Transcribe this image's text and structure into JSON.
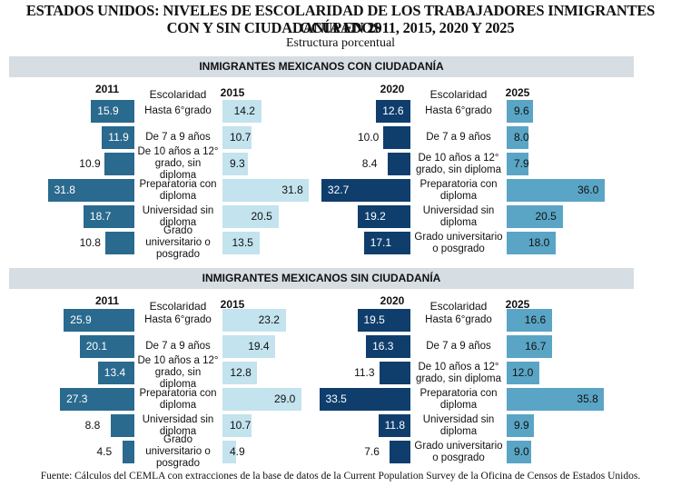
{
  "title_line1": "ESTADOS UNIDOS: NIVELES DE ESCOLARIDAD DE LOS TRABAJADORES INMIGRANTES OCUPADOS",
  "title_line2": "CON Y SIN CIUDADANÍA EN 2011, 2015, 2020 Y 2025",
  "subtitle": "Estructura porcentual",
  "source": "Fuente: Cálculos del CEMLA con extracciones de la base de datos de la Current Population Survey de la Oficina de Censos de Estados Unidos.",
  "colors": {
    "y2011": "#2a6a8e",
    "y2015": "#c3e3ee",
    "y2020": "#0f3e6d",
    "y2025": "#5aa5c5",
    "band": "#d6dde3"
  },
  "chart_data": [
    {
      "type": "bar",
      "title": "INMIGRANTES MEXICANOS CON CIUDADANÍA",
      "category_header": "Escolaridad",
      "categories": [
        "Hasta 6°grado",
        "De 7 a 9 años",
        "De 10 años a 12° grado, sin diploma",
        "Preparatoria con diploma",
        "Universidad sin diploma",
        "Grado universitario o posgrado"
      ],
      "series": [
        {
          "name": "2011",
          "values": [
            15.9,
            11.9,
            10.9,
            31.8,
            18.7,
            10.8
          ]
        },
        {
          "name": "2015",
          "values": [
            14.2,
            10.7,
            9.3,
            31.8,
            20.5,
            13.5
          ]
        },
        {
          "name": "2020",
          "values": [
            12.6,
            10.0,
            8.4,
            32.7,
            19.2,
            17.1
          ]
        },
        {
          "name": "2025",
          "values": [
            9.6,
            8.0,
            7.9,
            36.0,
            20.5,
            18.0
          ]
        }
      ]
    },
    {
      "type": "bar",
      "title": "INMIGRANTES MEXICANOS SIN CIUDADANÍA",
      "category_header": "Escolaridad",
      "categories": [
        "Hasta 6°grado",
        "De 7 a 9 años",
        "De 10 años a 12° grado, sin diploma",
        "Preparatoria con diploma",
        "Universidad sin diploma",
        "Grado universitario o posgrado"
      ],
      "series": [
        {
          "name": "2011",
          "values": [
            25.9,
            20.1,
            13.4,
            27.3,
            8.8,
            4.5
          ]
        },
        {
          "name": "2015",
          "values": [
            23.2,
            19.4,
            12.8,
            29.0,
            10.7,
            4.9
          ]
        },
        {
          "name": "2020",
          "values": [
            19.5,
            16.3,
            11.3,
            33.5,
            11.8,
            7.6
          ]
        },
        {
          "name": "2025",
          "values": [
            16.6,
            16.7,
            12.0,
            35.8,
            9.9,
            9.0
          ]
        }
      ]
    }
  ]
}
